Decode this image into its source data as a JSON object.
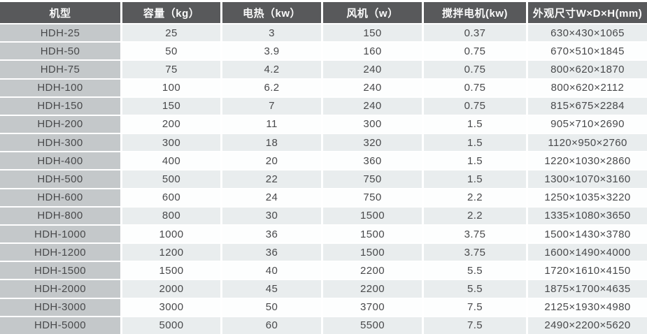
{
  "chart_data": {
    "type": "table",
    "columns": [
      {
        "key": "model",
        "label": "机型"
      },
      {
        "key": "capacity",
        "label": "容量（kg）"
      },
      {
        "key": "heating",
        "label": "电热（kw）"
      },
      {
        "key": "fan",
        "label": "风机（w）"
      },
      {
        "key": "mixer",
        "label": "搅拌电机(kw)"
      },
      {
        "key": "dimensions",
        "label": "外观尺寸W×D×H(mm)"
      }
    ],
    "rows": [
      [
        "HDH-25",
        "25",
        "3",
        "150",
        "0.37",
        "630×430×1065"
      ],
      [
        "HDH-50",
        "50",
        "3.9",
        "160",
        "0.75",
        "670×510×1845"
      ],
      [
        "HDH-75",
        "75",
        "4.2",
        "240",
        "0.75",
        "800×620×1870"
      ],
      [
        "HDH-100",
        "100",
        "6.2",
        "240",
        "0.75",
        "800×620×2112"
      ],
      [
        "HDH-150",
        "150",
        "7",
        "240",
        "0.75",
        "815×675×2284"
      ],
      [
        "HDH-200",
        "200",
        "11",
        "300",
        "1.5",
        "905×710×2690"
      ],
      [
        "HDH-300",
        "300",
        "18",
        "320",
        "1.5",
        "1120×950×2760"
      ],
      [
        "HDH-400",
        "400",
        "20",
        "360",
        "1.5",
        "1220×1030×2860"
      ],
      [
        "HDH-500",
        "500",
        "22",
        "750",
        "1.5",
        "1300×1070×3160"
      ],
      [
        "HDH-600",
        "600",
        "24",
        "750",
        "2.2",
        "1250×1035×3220"
      ],
      [
        "HDH-800",
        "800",
        "30",
        "1500",
        "2.2",
        "1335×1080×3650"
      ],
      [
        "HDH-1000",
        "1000",
        "36",
        "1500",
        "3.75",
        "1500×1430×3780"
      ],
      [
        "HDH-1200",
        "1200",
        "36",
        "1500",
        "3.75",
        "1600×1490×4000"
      ],
      [
        "HDH-1500",
        "1500",
        "40",
        "2200",
        "5.5",
        "1720×1610×4150"
      ],
      [
        "HDH-2000",
        "2000",
        "45",
        "2200",
        "5.5",
        "1875×1700×4635"
      ],
      [
        "HDH-3000",
        "3000",
        "50",
        "3700",
        "7.5",
        "2125×1930×4980"
      ],
      [
        "HDH-5000",
        "5000",
        "60",
        "5500",
        "7.5",
        "2490×2200×5620"
      ]
    ]
  },
  "colors": {
    "header_bg": "#58595b",
    "header_text": "#fafafa",
    "model_column_bg": "#c4c8ca",
    "row_shaded_bg": "#e9edee",
    "row_plain_bg": "#fdfefe",
    "cell_text": "#48494b",
    "divider": "#ffffff"
  }
}
